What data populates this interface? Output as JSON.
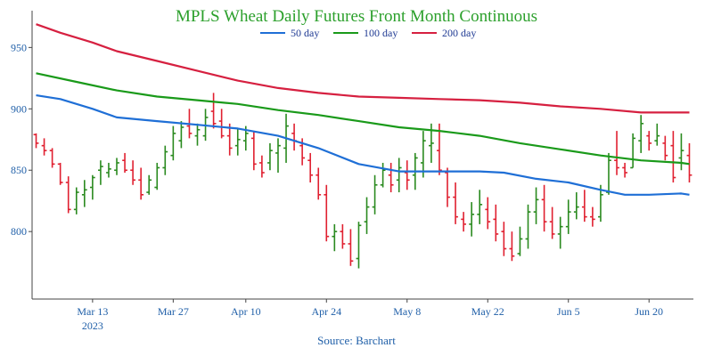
{
  "chart_data": {
    "type": "line",
    "title": "MPLS Wheat Daily Futures Front Month Continuous",
    "source": "Source: Barchart",
    "title_color": "#2ca02c",
    "ylim": [
      745,
      980
    ],
    "yticks": [
      800,
      850,
      900,
      950
    ],
    "xticks": [
      {
        "label": "Mar 13",
        "sublabel": "2023",
        "i": 7
      },
      {
        "label": "Mar 27",
        "sublabel": "",
        "i": 17
      },
      {
        "label": "Apr 10",
        "sublabel": "",
        "i": 26
      },
      {
        "label": "Apr 24",
        "sublabel": "",
        "i": 36
      },
      {
        "label": "May 8",
        "sublabel": "",
        "i": 46
      },
      {
        "label": "May 22",
        "sublabel": "",
        "i": 56
      },
      {
        "label": "Jun 5",
        "sublabel": "",
        "i": 66
      },
      {
        "label": "Jun 20",
        "sublabel": "",
        "i": 76
      }
    ],
    "n_bars": 82,
    "colors": {
      "up": "#2a8a1f",
      "down": "#e02030",
      "axis": "#444444"
    },
    "series": [
      {
        "name": "50 day",
        "color": "#1f6fd6",
        "values": [
          [
            0,
            911
          ],
          [
            3,
            908
          ],
          [
            7,
            900
          ],
          [
            10,
            893
          ],
          [
            15,
            890
          ],
          [
            20,
            887
          ],
          [
            25,
            884
          ],
          [
            30,
            878
          ],
          [
            35,
            868
          ],
          [
            40,
            855
          ],
          [
            45,
            849
          ],
          [
            50,
            849
          ],
          [
            55,
            849
          ],
          [
            58,
            848
          ],
          [
            62,
            843
          ],
          [
            66,
            840
          ],
          [
            70,
            834
          ],
          [
            73,
            830
          ],
          [
            76,
            830
          ],
          [
            80,
            831
          ],
          [
            81,
            830
          ]
        ]
      },
      {
        "name": "100 day",
        "color": "#1a9a1a",
        "values": [
          [
            0,
            929
          ],
          [
            5,
            922
          ],
          [
            10,
            915
          ],
          [
            15,
            910
          ],
          [
            20,
            907
          ],
          [
            25,
            904
          ],
          [
            30,
            899
          ],
          [
            35,
            895
          ],
          [
            40,
            890
          ],
          [
            45,
            885
          ],
          [
            50,
            882
          ],
          [
            55,
            878
          ],
          [
            60,
            872
          ],
          [
            65,
            867
          ],
          [
            70,
            862
          ],
          [
            75,
            858
          ],
          [
            80,
            856
          ],
          [
            81,
            855
          ]
        ]
      },
      {
        "name": "200 day",
        "color": "#d62040",
        "values": [
          [
            0,
            969
          ],
          [
            3,
            962
          ],
          [
            7,
            954
          ],
          [
            10,
            947
          ],
          [
            15,
            939
          ],
          [
            20,
            931
          ],
          [
            25,
            923
          ],
          [
            30,
            917
          ],
          [
            35,
            913
          ],
          [
            40,
            910
          ],
          [
            45,
            909
          ],
          [
            50,
            908
          ],
          [
            55,
            907
          ],
          [
            60,
            905
          ],
          [
            65,
            902
          ],
          [
            70,
            900
          ],
          [
            75,
            897
          ],
          [
            81,
            897
          ]
        ]
      }
    ],
    "bars": [
      [
        880,
        868,
        879,
        872
      ],
      [
        876,
        862,
        870,
        866
      ],
      [
        868,
        852,
        866,
        855
      ],
      [
        856,
        838,
        855,
        840
      ],
      [
        845,
        815,
        840,
        818
      ],
      [
        836,
        814,
        818,
        832
      ],
      [
        842,
        820,
        830,
        834
      ],
      [
        846,
        826,
        836,
        844
      ],
      [
        858,
        838,
        850,
        853
      ],
      [
        856,
        844,
        848,
        851
      ],
      [
        860,
        846,
        850,
        856
      ],
      [
        864,
        848,
        858,
        850
      ],
      [
        858,
        838,
        850,
        842
      ],
      [
        852,
        826,
        842,
        830
      ],
      [
        846,
        830,
        832,
        842
      ],
      [
        856,
        834,
        836,
        852
      ],
      [
        870,
        846,
        852,
        865
      ],
      [
        886,
        858,
        862,
        880
      ],
      [
        890,
        868,
        874,
        885
      ],
      [
        900,
        876,
        886,
        880
      ],
      [
        888,
        870,
        878,
        883
      ],
      [
        900,
        874,
        878,
        893
      ],
      [
        913,
        884,
        898,
        888
      ],
      [
        900,
        876,
        890,
        878
      ],
      [
        888,
        862,
        878,
        868
      ],
      [
        884,
        862,
        870,
        875
      ],
      [
        886,
        866,
        874,
        880
      ],
      [
        882,
        850,
        876,
        855
      ],
      [
        862,
        844,
        856,
        848
      ],
      [
        872,
        850,
        856,
        866
      ],
      [
        876,
        848,
        864,
        870
      ],
      [
        896,
        856,
        868,
        886
      ],
      [
        888,
        866,
        880,
        874
      ],
      [
        876,
        854,
        870,
        860
      ],
      [
        864,
        840,
        858,
        846
      ],
      [
        852,
        826,
        846,
        830
      ],
      [
        838,
        792,
        830,
        796
      ],
      [
        806,
        784,
        796,
        800
      ],
      [
        806,
        786,
        800,
        790
      ],
      [
        802,
        772,
        790,
        776
      ],
      [
        808,
        770,
        778,
        805
      ],
      [
        828,
        798,
        808,
        820
      ],
      [
        846,
        814,
        820,
        838
      ],
      [
        856,
        836,
        838,
        850
      ],
      [
        856,
        832,
        846,
        838
      ],
      [
        860,
        832,
        842,
        852
      ],
      [
        858,
        834,
        848,
        842
      ],
      [
        864,
        834,
        846,
        860
      ],
      [
        882,
        844,
        856,
        874
      ],
      [
        888,
        856,
        870,
        872
      ],
      [
        888,
        846,
        866,
        850
      ],
      [
        852,
        820,
        848,
        828
      ],
      [
        840,
        806,
        828,
        812
      ],
      [
        816,
        800,
        810,
        806
      ],
      [
        824,
        796,
        806,
        814
      ],
      [
        834,
        806,
        814,
        822
      ],
      [
        828,
        802,
        818,
        808
      ],
      [
        822,
        792,
        810,
        798
      ],
      [
        808,
        780,
        800,
        786
      ],
      [
        800,
        776,
        786,
        780
      ],
      [
        804,
        780,
        782,
        794
      ],
      [
        822,
        786,
        794,
        816
      ],
      [
        836,
        806,
        816,
        826
      ],
      [
        838,
        800,
        826,
        808
      ],
      [
        820,
        794,
        808,
        798
      ],
      [
        812,
        786,
        798,
        804
      ],
      [
        826,
        798,
        804,
        816
      ],
      [
        832,
        810,
        816,
        820
      ],
      [
        834,
        808,
        820,
        812
      ],
      [
        820,
        804,
        812,
        810
      ],
      [
        838,
        808,
        812,
        830
      ],
      [
        864,
        830,
        832,
        858
      ],
      [
        882,
        846,
        858,
        852
      ],
      [
        856,
        844,
        852,
        848
      ],
      [
        880,
        852,
        852,
        876
      ],
      [
        895,
        864,
        874,
        888
      ],
      [
        882,
        866,
        878,
        872
      ],
      [
        888,
        870,
        874,
        878
      ],
      [
        878,
        858,
        872,
        862
      ],
      [
        882,
        840,
        870,
        844
      ],
      [
        880,
        850,
        860,
        866
      ],
      [
        872,
        840,
        862,
        846
      ]
    ]
  },
  "legend": {
    "items": [
      {
        "label": "50 day",
        "color": "#1f6fd6"
      },
      {
        "label": "100 day",
        "color": "#1a9a1a"
      },
      {
        "label": "200 day",
        "color": "#d62040"
      }
    ]
  }
}
